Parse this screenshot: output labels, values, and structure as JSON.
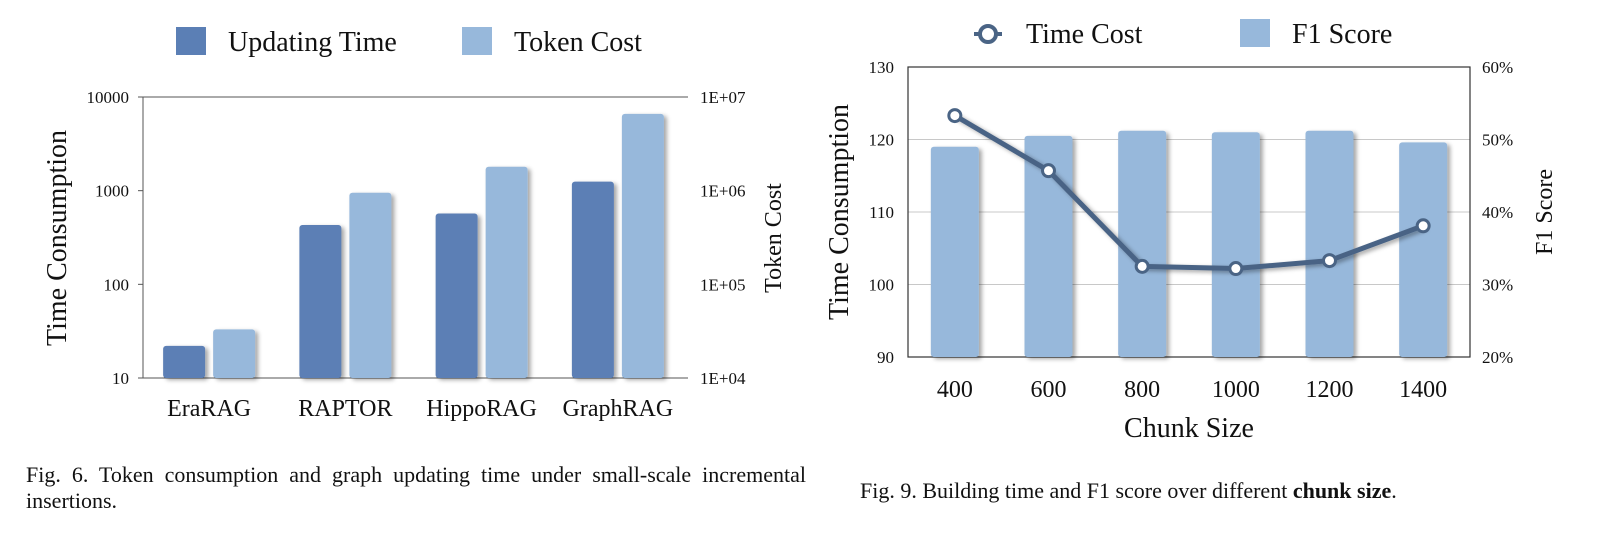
{
  "chart_data": [
    {
      "type": "bar",
      "title": "",
      "xlabel": "",
      "ylabel": "Time Consumption",
      "y2label": "Token Cost",
      "yscale": "log",
      "ylim": [
        10,
        10000
      ],
      "y2lim": [
        10000,
        10000000
      ],
      "yticks": [
        "10",
        "100",
        "1000",
        "10000"
      ],
      "y2ticks": [
        "1E+04",
        "1E+05",
        "1E+06",
        "1E+07"
      ],
      "categories": [
        "EraRAG",
        "RAPTOR",
        "HippoRAG",
        "GraphRAG"
      ],
      "legend_position": "top",
      "series": [
        {
          "name": "Updating Time",
          "axis": "left",
          "color": "#5b7fb5",
          "values": [
            22,
            430,
            570,
            1250
          ]
        },
        {
          "name": "Token Cost",
          "axis": "right",
          "color": "#97b8db",
          "values": [
            33000,
            950000,
            1800000,
            6600000
          ]
        }
      ]
    },
    {
      "type": "bar",
      "title": "",
      "xlabel": "Chunk Size",
      "ylabel": "Time Consumption",
      "y2label": "F1 Score",
      "ylim": [
        90,
        130
      ],
      "y2lim": [
        20,
        60
      ],
      "yticks": [
        "90",
        "100",
        "110",
        "120",
        "130"
      ],
      "y2ticks": [
        "20%",
        "30%",
        "40%",
        "50%",
        "60%"
      ],
      "categories": [
        "400",
        "600",
        "800",
        "1000",
        "1200",
        "1400"
      ],
      "legend_position": "top",
      "series": [
        {
          "name": "Time Cost",
          "type": "line",
          "axis": "left",
          "color": "#4a6485",
          "values": [
            123.3,
            115.7,
            102.5,
            102.2,
            103.3,
            108.1
          ]
        },
        {
          "name": "F1 Score",
          "type": "bar",
          "axis": "right",
          "color": "#97b8db",
          "values": [
            49,
            50.5,
            51.2,
            51,
            51.2,
            49.6
          ]
        }
      ]
    }
  ],
  "captions": {
    "fig6": "Fig. 6.  Token consumption and graph updating time under small-scale incremental insertions.",
    "fig9_prefix": "Fig. 9.  Building time and F1 score over different ",
    "fig9_bold": "chunk size",
    "fig9_suffix": "."
  }
}
